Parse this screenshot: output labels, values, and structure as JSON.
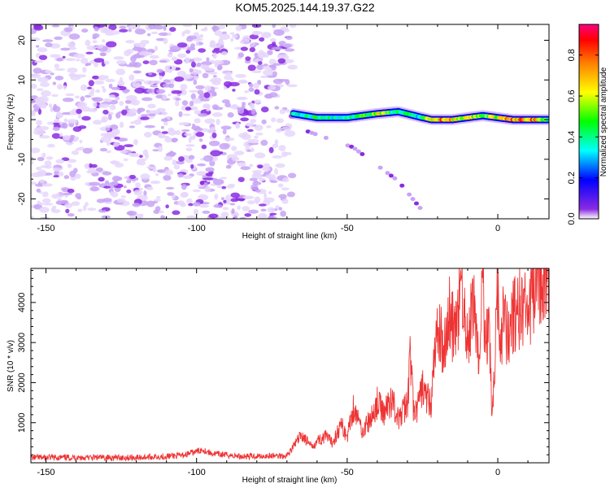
{
  "title": "KOM5.2025.144.19.37.G22",
  "chart_data": [
    {
      "type": "heatmap",
      "xlabel": "Height of straight line (km)",
      "ylabel": "Frequency (Hz)",
      "xlim": [
        -155,
        17
      ],
      "ylim": [
        -25,
        24
      ],
      "xticks": [
        -150,
        -100,
        -50,
        0
      ],
      "yticks": [
        -20,
        -10,
        0,
        10,
        20
      ],
      "grid": false,
      "colorbar": {
        "label": "Normalized spectral amplitude",
        "range": [
          0,
          0.95
        ],
        "ticks": [
          0.0,
          0.2,
          0.4,
          0.6,
          0.8
        ],
        "colormap": [
          "#ffffff",
          "#8a2be2",
          "#0000ff",
          "#00ffff",
          "#00ff00",
          "#ffff00",
          "#ff8000",
          "#ff0000",
          "#ff0080"
        ]
      },
      "noise_region_x": [
        -155,
        -68
      ],
      "signal_band": [
        {
          "x": -68,
          "f": 1.5,
          "amp": 0.45
        },
        {
          "x": -60,
          "f": 0.5,
          "amp": 0.5
        },
        {
          "x": -50,
          "f": 0.5,
          "amp": 0.45
        },
        {
          "x": -40,
          "f": 1.5,
          "amp": 0.75
        },
        {
          "x": -33,
          "f": 2.0,
          "amp": 0.5
        },
        {
          "x": -25,
          "f": 0.5,
          "amp": 0.45
        },
        {
          "x": -22,
          "f": 0.0,
          "amp": 0.95
        },
        {
          "x": -15,
          "f": 0.0,
          "amp": 0.85
        },
        {
          "x": -5,
          "f": 1.0,
          "amp": 0.6
        },
        {
          "x": 5,
          "f": 0.0,
          "amp": 0.9
        },
        {
          "x": 12,
          "f": 0.0,
          "amp": 0.9
        },
        {
          "x": 17,
          "f": 0.0,
          "amp": 0.6
        }
      ],
      "secondary_band": [
        {
          "x": -63,
          "f": -3.0
        },
        {
          "x": -48,
          "f": -7.0
        },
        {
          "x": -33,
          "f": -15.5
        },
        {
          "x": -25,
          "f": -23.0
        }
      ]
    },
    {
      "type": "line",
      "xlabel": "Height of straight line (km)",
      "ylabel": "SNR (10 * v/v)",
      "xlim": [
        -155,
        17
      ],
      "ylim": [
        0,
        4850
      ],
      "xticks": [
        -150,
        -100,
        -50,
        0
      ],
      "yticks": [
        1000,
        2000,
        3000,
        4000
      ],
      "grid": false,
      "color": "#ee3333",
      "series": [
        {
          "x": [
            -155,
            -140,
            -120,
            -105,
            -100,
            -98,
            -95,
            -85,
            -70,
            -65,
            -62,
            -60,
            -57,
            -55,
            -52,
            -50,
            -48,
            -45,
            -42,
            -40,
            -38,
            -35,
            -33,
            -30,
            -29,
            -28,
            -27,
            -25,
            -24,
            -22,
            -21,
            -20,
            -18,
            -16,
            -14,
            -12,
            -10,
            -8,
            -6,
            -5,
            -4,
            -3,
            -2,
            -1,
            0,
            1,
            2,
            3,
            5,
            8,
            10,
            12,
            15,
            17
          ],
          "y": [
            150,
            150,
            150,
            200,
            300,
            350,
            250,
            180,
            200,
            700,
            400,
            550,
            650,
            500,
            950,
            650,
            1400,
            800,
            1100,
            1500,
            1250,
            1600,
            1050,
            1500,
            2750,
            1300,
            1250,
            1900,
            1650,
            1500,
            2700,
            3300,
            2900,
            3700,
            3100,
            4500,
            2900,
            4100,
            2300,
            4700,
            2800,
            4000,
            1200,
            2500,
            4400,
            2900,
            4100,
            3200,
            3600,
            3900,
            3600,
            4200,
            4800,
            4400
          ]
        }
      ]
    }
  ]
}
